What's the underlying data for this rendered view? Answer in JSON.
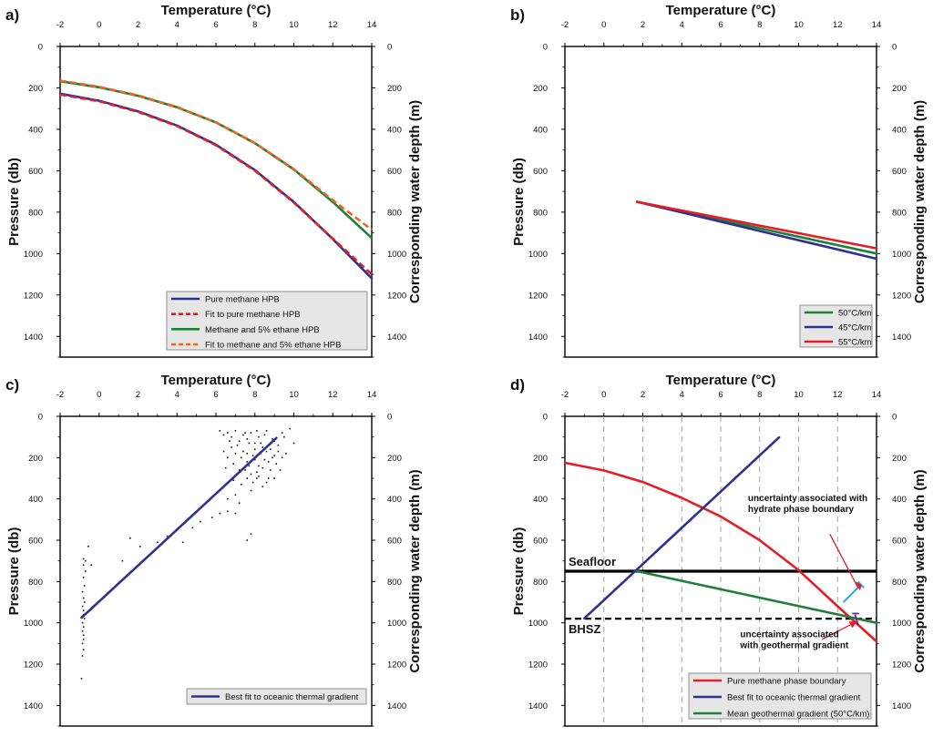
{
  "chart_data": [
    {
      "panel_label": "a)",
      "type": "line",
      "title": "Temperature (°C)",
      "ylabel": "Pressure (db)",
      "y2label": "Corresponding water depth (m)",
      "xlim": [
        -2,
        14
      ],
      "ylim": [
        0,
        1500
      ],
      "xticks": [
        "-2",
        "0",
        "2",
        "4",
        "6",
        "8",
        "10",
        "12",
        "14"
      ],
      "yticks": [
        "0",
        "200",
        "400",
        "600",
        "800",
        "1000",
        "1200",
        "1400"
      ],
      "y2ticks": [
        "0",
        "200",
        "400",
        "600",
        "800",
        "1000",
        "1200",
        "1400"
      ],
      "series": [
        {
          "name": "Pure methane HPB",
          "color": "#2e3192",
          "dash": "solid",
          "points": [
            [
              -2,
              228
            ],
            [
              0,
              262
            ],
            [
              2,
              313
            ],
            [
              4,
              382
            ],
            [
              6,
              474
            ],
            [
              8,
              597
            ],
            [
              10,
              751
            ],
            [
              12,
              930
            ],
            [
              14,
              1120
            ]
          ]
        },
        {
          "name": "Fit to pure methane HPB",
          "color": "#e41e26",
          "dash": "dashed",
          "points": [
            [
              -2,
              232
            ],
            [
              0,
              265
            ],
            [
              2,
              316
            ],
            [
              4,
              384
            ],
            [
              6,
              477
            ],
            [
              8,
              600
            ],
            [
              10,
              754
            ],
            [
              12,
              928
            ],
            [
              14,
              1100
            ]
          ]
        },
        {
          "name": "Methane and 5% ethane HPB",
          "color": "#1f7f3b",
          "dash": "solid",
          "points": [
            [
              -2,
              168
            ],
            [
              0,
              197
            ],
            [
              2,
              238
            ],
            [
              4,
              294
            ],
            [
              6,
              367
            ],
            [
              8,
              467
            ],
            [
              10,
              594
            ],
            [
              12,
              751
            ],
            [
              14,
              925
            ]
          ]
        },
        {
          "name": "Fit to methane and 5% ethane HPB",
          "color": "#f26522",
          "dash": "dashed",
          "points": [
            [
              -2,
              165
            ],
            [
              0,
              195
            ],
            [
              2,
              236
            ],
            [
              4,
              292
            ],
            [
              6,
              366
            ],
            [
              8,
              466
            ],
            [
              10,
              592
            ],
            [
              12,
              742
            ],
            [
              14,
              885
            ]
          ]
        }
      ],
      "legend": "bottom-right"
    },
    {
      "panel_label": "b)",
      "type": "line",
      "title": "Temperature (°C)",
      "ylabel": "Pressure (db)",
      "y2label": "Corresponding water depth (m)",
      "xlim": [
        -2,
        14
      ],
      "ylim": [
        0,
        1500
      ],
      "xticks": [
        "-2",
        "0",
        "2",
        "4",
        "6",
        "8",
        "10",
        "12",
        "14"
      ],
      "yticks": [
        "0",
        "200",
        "400",
        "600",
        "800",
        "1000",
        "1200",
        "1400"
      ],
      "y2ticks": [
        "0",
        "200",
        "400",
        "600",
        "800",
        "1000",
        "1200",
        "1400"
      ],
      "series": [
        {
          "name": "50°C/km",
          "color": "#1f7f3b",
          "dash": "solid",
          "points": [
            [
              1.7,
              750
            ],
            [
              14,
              1000
            ]
          ]
        },
        {
          "name": "45°C/km",
          "color": "#2e3192",
          "dash": "solid",
          "points": [
            [
              1.7,
              750
            ],
            [
              14,
              1025
            ]
          ]
        },
        {
          "name": "55°C/km",
          "color": "#e41e26",
          "dash": "solid",
          "points": [
            [
              1.7,
              750
            ],
            [
              14,
              975
            ]
          ]
        }
      ],
      "legend": "bottom-right"
    },
    {
      "panel_label": "c)",
      "type": "scatter",
      "title": "Temperature (°C)",
      "ylabel": "Pressure (db)",
      "y2label": "Corresponding water depth (m)",
      "xlim": [
        -2,
        14
      ],
      "ylim": [
        0,
        1500
      ],
      "xticks": [
        "-2",
        "0",
        "2",
        "4",
        "6",
        "8",
        "10",
        "12",
        "14"
      ],
      "yticks": [
        "0",
        "200",
        "400",
        "600",
        "800",
        "1000",
        "1200",
        "1400"
      ],
      "y2ticks": [
        "0",
        "200",
        "400",
        "600",
        "800",
        "1000",
        "1200",
        "1400"
      ],
      "series": [
        {
          "name": "Best fit to oceanic thermal gradient",
          "color": "#2e3192",
          "dash": "solid",
          "points": [
            [
              -0.9,
              975
            ],
            [
              9.1,
              105
            ]
          ]
        }
      ],
      "scatter_sample": [
        [
          -0.8,
          690
        ],
        [
          -0.7,
          700
        ],
        [
          -0.8,
          720
        ],
        [
          -0.7,
          750
        ],
        [
          -0.8,
          780
        ],
        [
          -0.75,
          820
        ],
        [
          -0.85,
          850
        ],
        [
          -0.8,
          880
        ],
        [
          -0.75,
          900
        ],
        [
          -0.85,
          920
        ],
        [
          -0.8,
          940
        ],
        [
          -0.8,
          960
        ],
        [
          -0.75,
          980
        ],
        [
          -0.85,
          1000
        ],
        [
          -0.8,
          1020
        ],
        [
          -0.85,
          1040
        ],
        [
          -0.8,
          1060
        ],
        [
          -0.8,
          1080
        ],
        [
          -0.85,
          1100
        ],
        [
          -0.8,
          1130
        ],
        [
          -0.85,
          1160
        ],
        [
          -0.9,
          1270
        ],
        [
          -0.55,
          630
        ],
        [
          -0.4,
          720
        ],
        [
          1.2,
          700
        ],
        [
          1.6,
          590
        ],
        [
          2.1,
          630
        ],
        [
          3.0,
          610
        ],
        [
          3.5,
          580
        ],
        [
          4.3,
          610
        ],
        [
          4.8,
          540
        ],
        [
          5.2,
          510
        ],
        [
          5.8,
          490
        ],
        [
          6.2,
          470
        ],
        [
          6.6,
          460
        ],
        [
          7.0,
          470
        ],
        [
          7.6,
          600
        ],
        [
          7.8,
          570
        ],
        [
          7.2,
          420
        ],
        [
          6.6,
          400
        ],
        [
          7.0,
          380
        ],
        [
          7.8,
          360
        ],
        [
          8.4,
          340
        ],
        [
          8.7,
          300
        ],
        [
          7.6,
          300
        ],
        [
          6.2,
          70
        ],
        [
          6.4,
          90
        ],
        [
          6.6,
          80
        ],
        [
          6.8,
          100
        ],
        [
          7.0,
          70
        ],
        [
          7.2,
          120
        ],
        [
          7.4,
          90
        ],
        [
          7.6,
          110
        ],
        [
          7.8,
          80
        ],
        [
          8.0,
          130
        ],
        [
          8.2,
          100
        ],
        [
          8.4,
          150
        ],
        [
          8.6,
          70
        ],
        [
          8.8,
          160
        ],
        [
          9.0,
          120
        ],
        [
          9.2,
          140
        ],
        [
          9.5,
          100
        ],
        [
          9.8,
          60
        ],
        [
          10.0,
          130
        ],
        [
          7.0,
          180
        ],
        [
          7.3,
          200
        ],
        [
          7.6,
          220
        ],
        [
          7.9,
          190
        ],
        [
          8.2,
          240
        ],
        [
          8.5,
          210
        ],
        [
          8.8,
          260
        ],
        [
          9.1,
          230
        ],
        [
          9.4,
          200
        ],
        [
          7.5,
          260
        ],
        [
          7.8,
          280
        ],
        [
          8.1,
          300
        ],
        [
          8.4,
          250
        ],
        [
          8.7,
          220
        ],
        [
          9.0,
          190
        ],
        [
          6.9,
          230
        ],
        [
          7.2,
          260
        ],
        [
          7.7,
          240
        ],
        [
          8.0,
          210
        ],
        [
          8.3,
          180
        ],
        [
          8.6,
          170
        ],
        [
          8.9,
          200
        ],
        [
          9.2,
          170
        ],
        [
          9.6,
          180
        ],
        [
          7.4,
          170
        ],
        [
          6.8,
          150
        ],
        [
          7.1,
          140
        ],
        [
          8.0,
          160
        ],
        [
          8.3,
          130
        ],
        [
          8.9,
          110
        ],
        [
          7.9,
          320
        ],
        [
          8.2,
          290
        ],
        [
          7.3,
          330
        ],
        [
          6.9,
          310
        ],
        [
          6.5,
          250
        ],
        [
          6.6,
          200
        ],
        [
          6.4,
          170
        ],
        [
          6.7,
          120
        ],
        [
          9.3,
          260
        ],
        [
          9.0,
          300
        ],
        [
          8.6,
          320
        ],
        [
          8.1,
          270
        ],
        [
          7.6,
          180
        ],
        [
          7.7,
          130
        ],
        [
          7.5,
          80
        ],
        [
          8.1,
          70
        ],
        [
          8.5,
          90
        ],
        [
          9.4,
          80
        ]
      ],
      "legend": "bottom-right"
    },
    {
      "panel_label": "d)",
      "type": "line",
      "title": "Temperature (°C)",
      "ylabel": "Pressure (db)",
      "y2label": "Corresponding water depth (m)",
      "xlim": [
        -2,
        14
      ],
      "ylim": [
        0,
        1500
      ],
      "xticks": [
        "-2",
        "0",
        "2",
        "4",
        "6",
        "8",
        "10",
        "12",
        "14"
      ],
      "yticks": [
        "0",
        "200",
        "400",
        "600",
        "800",
        "1000",
        "1200",
        "1400"
      ],
      "y2ticks": [
        "0",
        "200",
        "400",
        "600",
        "800",
        "1000",
        "1200",
        "1400"
      ],
      "grid_x_dashed": [
        0,
        2,
        4,
        6,
        8,
        10,
        12
      ],
      "series": [
        {
          "name": "Pure methane phase boundary",
          "color": "#e41e26",
          "dash": "solid",
          "points": [
            [
              -2,
              225
            ],
            [
              0,
              262
            ],
            [
              2,
              318
            ],
            [
              4,
              395
            ],
            [
              6,
              485
            ],
            [
              8,
              600
            ],
            [
              10,
              745
            ],
            [
              12,
              920
            ],
            [
              14,
              1090
            ]
          ]
        },
        {
          "name": "Best fit to oceanic thermal gradient",
          "color": "#2e3192",
          "dash": "solid",
          "points": [
            [
              -1.0,
              978
            ],
            [
              9.0,
              102
            ]
          ]
        },
        {
          "name": "Mean geothermal gradient (50°C/km)",
          "color": "#1f7f3b",
          "dash": "solid",
          "points": [
            [
              1.7,
              750
            ],
            [
              14,
              1000
            ]
          ]
        }
      ],
      "hlines": [
        {
          "label": "Seafloor",
          "y": 750,
          "color": "#000000",
          "style": "solid"
        },
        {
          "label": "BHSZ",
          "y": 980,
          "color": "#000000",
          "style": "dashed"
        }
      ],
      "annotations": [
        {
          "text": [
            "uncertainty associated with",
            "hydrate phase boundary"
          ]
        },
        {
          "text": [
            "uncertainty associated",
            "with geothermal gradient"
          ]
        }
      ],
      "legend": "bottom-right"
    }
  ]
}
